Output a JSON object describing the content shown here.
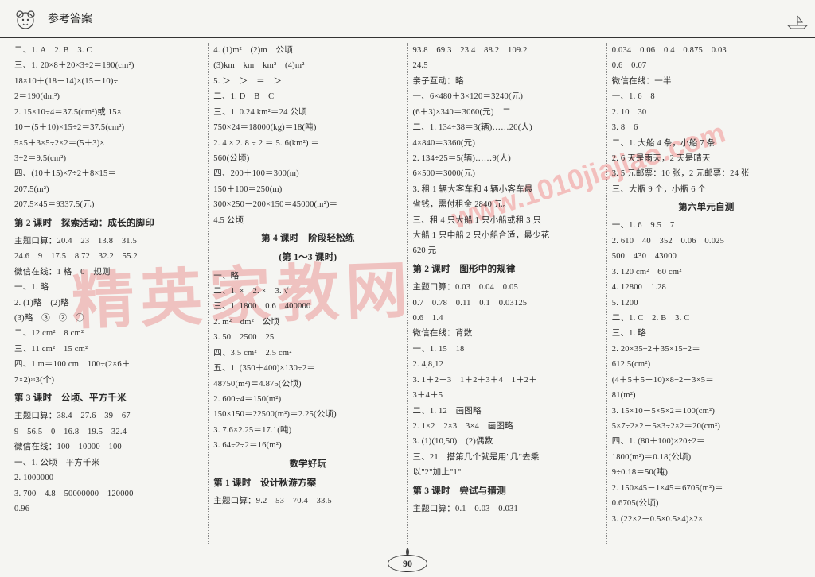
{
  "header": {
    "title": "参考答案"
  },
  "pageNumber": "90",
  "watermark": {
    "text1": "精英家教网",
    "text2": "www.1010jiajiao.com"
  },
  "columns": [
    {
      "lines": [
        {
          "t": "line",
          "v": "二、1. A　2. B　3. C"
        },
        {
          "t": "line",
          "v": "三、1. 20×8＋20×3÷2＝190(cm²)"
        },
        {
          "t": "line",
          "v": "18×10＋(18－14)×(15－10)÷"
        },
        {
          "t": "line",
          "v": "2＝190(dm²)"
        },
        {
          "t": "line",
          "v": "2. 15×10÷4＝37.5(cm²)或 15×"
        },
        {
          "t": "line",
          "v": "10－(5＋10)×15÷2＝37.5(cm²)"
        },
        {
          "t": "line",
          "v": "5×5＋3×5÷2×2＝(5＋3)×"
        },
        {
          "t": "line",
          "v": "3÷2＝9.5(cm²)"
        },
        {
          "t": "line",
          "v": "四、(10＋15)×7÷2＋8×15＝"
        },
        {
          "t": "line",
          "v": "207.5(m²)"
        },
        {
          "t": "line",
          "v": "207.5×45＝9337.5(元)"
        },
        {
          "t": "section",
          "v": "第 2 课时　探索活动：成长的脚印"
        },
        {
          "t": "line",
          "v": "主题口算：20.4　23　13.8　31.5"
        },
        {
          "t": "line",
          "v": "24.6　9　17.5　8.72　32.2　55.2"
        },
        {
          "t": "line",
          "v": "微信在线：1 格　0　规则"
        },
        {
          "t": "line",
          "v": "一、1. 略"
        },
        {
          "t": "line",
          "v": "2. (1)略　(2)略"
        },
        {
          "t": "line",
          "v": "(3)略　③　②　①"
        },
        {
          "t": "line",
          "v": "二、12 cm²　8 cm²"
        },
        {
          "t": "line",
          "v": "三、11 cm²　15 cm²"
        },
        {
          "t": "line",
          "v": "四、1 m＝100 cm　100÷(2×6＋"
        },
        {
          "t": "line",
          "v": "7×2)≈3(个)"
        },
        {
          "t": "section",
          "v": "第 3 课时　公顷、平方千米"
        },
        {
          "t": "line",
          "v": "主题口算：38.4　27.6　39　67"
        },
        {
          "t": "line",
          "v": "9　56.5　0　16.8　19.5　32.4"
        },
        {
          "t": "line",
          "v": "微信在线：100　10000　100"
        },
        {
          "t": "line",
          "v": "一、1. 公顷　平方千米"
        },
        {
          "t": "line",
          "v": "2. 1000000"
        },
        {
          "t": "line",
          "v": "3. 700　4.8　50000000　120000"
        },
        {
          "t": "line",
          "v": "0.96"
        }
      ]
    },
    {
      "lines": [
        {
          "t": "line",
          "v": "4. (1)m²　(2)m　公顷"
        },
        {
          "t": "line",
          "v": "(3)km　km　km²　(4)m²"
        },
        {
          "t": "line",
          "v": "5. ＞　＞　＝　＞"
        },
        {
          "t": "line",
          "v": "二、1. D　B　C"
        },
        {
          "t": "line",
          "v": "三、1. 0.24 km²＝24 公顷"
        },
        {
          "t": "line",
          "v": "750×24＝18000(kg)＝18(吨)"
        },
        {
          "t": "line",
          "v": "2. 4 × 2. 8 ÷ 2 ＝ 5. 6(km²) ＝"
        },
        {
          "t": "line",
          "v": "560(公顷)"
        },
        {
          "t": "line",
          "v": "四、200＋100＝300(m)"
        },
        {
          "t": "line",
          "v": "150＋100＝250(m)"
        },
        {
          "t": "line",
          "v": "300×250－200×150＝45000(m²)＝"
        },
        {
          "t": "line",
          "v": "4.5 公顷"
        },
        {
          "t": "section-center",
          "v": "第 4 课时　阶段轻松练"
        },
        {
          "t": "section-center",
          "v": "(第 1～3 课时)"
        },
        {
          "t": "line",
          "v": "一、略"
        },
        {
          "t": "line",
          "v": "二、1. ×　2. ×　3. √"
        },
        {
          "t": "line",
          "v": "三、1. 1800　0.6　400000"
        },
        {
          "t": "line",
          "v": "2. m²　dm²　公顷"
        },
        {
          "t": "line",
          "v": "3. 50　2500　25"
        },
        {
          "t": "line",
          "v": "四、3.5 cm²　2.5 cm²"
        },
        {
          "t": "line",
          "v": "五、1. (350＋400)×130÷2＝"
        },
        {
          "t": "line",
          "v": "48750(m²)＝4.875(公顷)"
        },
        {
          "t": "line",
          "v": "2. 600÷4＝150(m²)"
        },
        {
          "t": "line",
          "v": "150×150＝22500(m²)＝2.25(公顷)"
        },
        {
          "t": "line",
          "v": "3. 7.6×2.25＝17.1(吨)"
        },
        {
          "t": "line",
          "v": "3. 64÷2÷2＝16(m²)"
        },
        {
          "t": "section-center",
          "v": "数学好玩"
        },
        {
          "t": "section",
          "v": "第 1 课时　设计秋游方案"
        },
        {
          "t": "line",
          "v": "主题口算：9.2　53　70.4　33.5"
        }
      ]
    },
    {
      "lines": [
        {
          "t": "line",
          "v": "93.8　69.3　23.4　88.2　109.2"
        },
        {
          "t": "line",
          "v": "24.5"
        },
        {
          "t": "line",
          "v": "亲子互动：略"
        },
        {
          "t": "line",
          "v": "一、6×480＋3×120＝3240(元)"
        },
        {
          "t": "line",
          "v": "(6＋3)×340＝3060(元)　二"
        },
        {
          "t": "line",
          "v": "二、1. 134÷38＝3(辆)……20(人)"
        },
        {
          "t": "line",
          "v": "4×840＝3360(元)"
        },
        {
          "t": "line",
          "v": "2. 134÷25＝5(辆)……9(人)"
        },
        {
          "t": "line",
          "v": "6×500＝3000(元)"
        },
        {
          "t": "line",
          "v": "3. 租 1 辆大客车和 4 辆小客车最"
        },
        {
          "t": "line",
          "v": "省钱，需付租金 2840 元。"
        },
        {
          "t": "line",
          "v": "三、租 4 只大船 1 只小船或租 3 只"
        },
        {
          "t": "line",
          "v": "大船 1 只中船 2 只小船合适，最少花"
        },
        {
          "t": "line",
          "v": "620 元"
        },
        {
          "t": "section",
          "v": "第 2 课时　图形中的规律"
        },
        {
          "t": "line",
          "v": "主题口算：0.03　0.04　0.05"
        },
        {
          "t": "line",
          "v": "0.7　0.78　0.11　0.1　0.03125"
        },
        {
          "t": "line",
          "v": "0.6　1.4"
        },
        {
          "t": "line",
          "v": "微信在线：背数"
        },
        {
          "t": "line",
          "v": "一、1. 15　18"
        },
        {
          "t": "line",
          "v": "2. 4,8,12"
        },
        {
          "t": "line",
          "v": "3. 1＋2＋3　1＋2＋3＋4　1＋2＋"
        },
        {
          "t": "line",
          "v": "3＋4＋5"
        },
        {
          "t": "line",
          "v": "二、1. 12　画图略"
        },
        {
          "t": "line",
          "v": "2. 1×2　2×3　3×4　画图略"
        },
        {
          "t": "line",
          "v": "3. (1)(10,50)　(2)偶数"
        },
        {
          "t": "line",
          "v": "三、21　搭第几个就是用\"几\"去乘"
        },
        {
          "t": "line",
          "v": "以\"2\"加上\"1\""
        },
        {
          "t": "section",
          "v": "第 3 课时　尝试与猜测"
        },
        {
          "t": "line",
          "v": "主题口算：0.1　0.03　0.031"
        }
      ]
    },
    {
      "lines": [
        {
          "t": "line",
          "v": "0.034　0.06　0.4　0.875　0.03"
        },
        {
          "t": "line",
          "v": "0.6　0.07"
        },
        {
          "t": "line",
          "v": "微信在线：一半"
        },
        {
          "t": "line",
          "v": "一、1. 6　8"
        },
        {
          "t": "line",
          "v": "2. 10　30"
        },
        {
          "t": "line",
          "v": "3. 8　6"
        },
        {
          "t": "line",
          "v": "二、1. 大船 4 条，小船 7 条"
        },
        {
          "t": "line",
          "v": "2. 6 天是雨天，2 天是晴天"
        },
        {
          "t": "line",
          "v": "3. 5 元邮票：10 张，2 元邮票：24 张"
        },
        {
          "t": "line",
          "v": "三、大瓶 9 个，小瓶 6 个"
        },
        {
          "t": "section-center",
          "v": "第六单元自测"
        },
        {
          "t": "line",
          "v": "一、1. 6　9.5　7"
        },
        {
          "t": "line",
          "v": "2. 610　40　352　0.06　0.025"
        },
        {
          "t": "line",
          "v": "500　430　43000"
        },
        {
          "t": "line",
          "v": "3. 120 cm²　60 cm²"
        },
        {
          "t": "line",
          "v": "4. 12800　1.28"
        },
        {
          "t": "line",
          "v": "5. 1200"
        },
        {
          "t": "line",
          "v": "二、1. C　2. B　3. C"
        },
        {
          "t": "line",
          "v": "三、1. 略"
        },
        {
          "t": "line",
          "v": "2. 20×35÷2＋35×15÷2＝"
        },
        {
          "t": "line",
          "v": "612.5(cm²)"
        },
        {
          "t": "line",
          "v": "(4＋5＋5＋10)×8÷2－3×5＝"
        },
        {
          "t": "line",
          "v": "81(m²)"
        },
        {
          "t": "line",
          "v": "3. 15×10－5×5×2＝100(cm²)"
        },
        {
          "t": "line",
          "v": "5×7÷2×2－5×3÷2×2＝20(cm²)"
        },
        {
          "t": "line",
          "v": "四、1. (80＋100)×20÷2＝"
        },
        {
          "t": "line",
          "v": "1800(m²)＝0.18(公顷)"
        },
        {
          "t": "line",
          "v": "9÷0.18＝50(吨)"
        },
        {
          "t": "line",
          "v": "2. 150×45－1×45＝6705(m²)＝"
        },
        {
          "t": "line",
          "v": "0.6705(公顷)"
        },
        {
          "t": "line",
          "v": "3. (22×2－0.5×0.5×4)×2×"
        }
      ]
    }
  ]
}
